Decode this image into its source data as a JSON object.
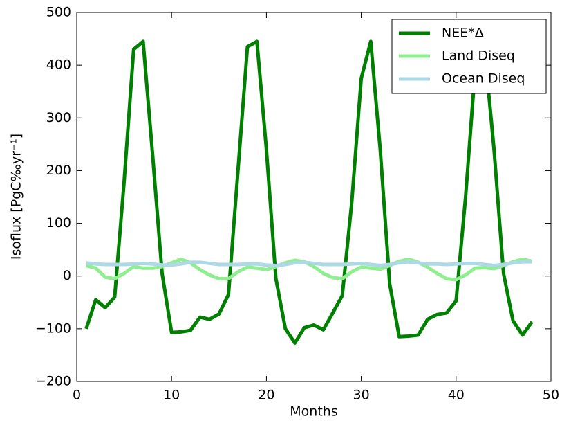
{
  "chart_data": {
    "type": "line",
    "x_label": "Months",
    "y_label": "Isoflux [PgC‰yr⁻¹]",
    "x": [
      1,
      2,
      3,
      4,
      5,
      6,
      7,
      8,
      9,
      10,
      11,
      12,
      13,
      14,
      15,
      16,
      17,
      18,
      19,
      20,
      21,
      22,
      23,
      24,
      25,
      26,
      27,
      28,
      29,
      30,
      31,
      32,
      33,
      34,
      35,
      36,
      37,
      38,
      39,
      40,
      41,
      42,
      43,
      44,
      45,
      46,
      47,
      48
    ],
    "series": [
      {
        "name": "NEE*Δ",
        "color": "#008000",
        "values": [
          -100,
          -45,
          -60,
          -40,
          180,
          430,
          445,
          230,
          5,
          -107,
          -106,
          -103,
          -78,
          -82,
          -72,
          -35,
          200,
          435,
          445,
          240,
          -5,
          -100,
          -127,
          -98,
          -93,
          -102,
          -70,
          -37,
          140,
          375,
          445,
          240,
          -15,
          -115,
          -114,
          -112,
          -82,
          -73,
          -70,
          -47,
          150,
          390,
          430,
          240,
          5,
          -85,
          -112,
          -87
        ]
      },
      {
        "name": "Land Diseq",
        "color": "#90ee90",
        "values": [
          20,
          15,
          -2,
          -5,
          5,
          18,
          15,
          15,
          18,
          25,
          32,
          25,
          12,
          2,
          -5,
          -5,
          8,
          17,
          15,
          12,
          18,
          25,
          30,
          27,
          18,
          5,
          -3,
          -5,
          8,
          17,
          15,
          13,
          20,
          28,
          32,
          26,
          17,
          5,
          -5,
          -7,
          2,
          15,
          16,
          14,
          20,
          27,
          32,
          28
        ]
      },
      {
        "name": "Ocean Diseq",
        "color": "#add8e6",
        "values": [
          25,
          23,
          22,
          22,
          22,
          23,
          24,
          23,
          21,
          21,
          23,
          26,
          26,
          24,
          22,
          22,
          22,
          23,
          23,
          21,
          20,
          22,
          25,
          26,
          24,
          22,
          22,
          22,
          23,
          24,
          22,
          20,
          22,
          25,
          27,
          25,
          23,
          23,
          22,
          23,
          24,
          24,
          22,
          20,
          22,
          25,
          27,
          27
        ]
      }
    ],
    "xlim": [
      0,
      50
    ],
    "xticks": [
      0,
      10,
      20,
      30,
      40,
      50
    ],
    "ylim": [
      -200,
      500
    ],
    "yticks": [
      {
        "value": -200,
        "label": "−200"
      },
      {
        "value": -100,
        "label": "−100"
      },
      0,
      100,
      200,
      300,
      400,
      500
    ],
    "legend": "upper right",
    "grid": false
  }
}
